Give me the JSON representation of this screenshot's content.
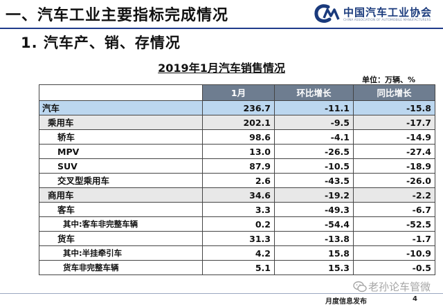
{
  "header": {
    "title": "一、汽车工业主要指标完成情况",
    "logo_cn": "中国汽车工业协会",
    "logo_en": "CHINA ASSOCIATION OF AUTOMOBILE MANUFACTURERS"
  },
  "section_title": "1. 汽车产、销、存情况",
  "table": {
    "title": "2019年1月汽车销售情况",
    "unit": "单位：万辆、%",
    "columns": [
      "",
      "1月",
      "环比增长",
      "同比增长"
    ],
    "rows": [
      {
        "name": "汽车",
        "level": 0,
        "jan": "236.7",
        "mom": "-11.1",
        "yoy": "-15.8"
      },
      {
        "name": "乘用车",
        "level": 1,
        "jan": "202.1",
        "mom": "-9.5",
        "yoy": "-17.7"
      },
      {
        "name": "轿车",
        "level": 2,
        "jan": "98.6",
        "mom": "-4.1",
        "yoy": "-14.9"
      },
      {
        "name": "MPV",
        "level": 2,
        "jan": "13.0",
        "mom": "-26.5",
        "yoy": "-27.4"
      },
      {
        "name": "SUV",
        "level": 2,
        "jan": "87.9",
        "mom": "-10.5",
        "yoy": "-18.9"
      },
      {
        "name": "交叉型乘用车",
        "level": 2,
        "jan": "2.6",
        "mom": "-43.5",
        "yoy": "-26.0"
      },
      {
        "name": "商用车",
        "level": 1,
        "jan": "34.6",
        "mom": "-19.2",
        "yoy": "-2.2"
      },
      {
        "name": "客车",
        "level": 2,
        "jan": "3.3",
        "mom": "-49.3",
        "yoy": "-6.7"
      },
      {
        "name": "其中:客车非完整车辆",
        "level": 3,
        "jan": "0.2",
        "mom": "-54.4",
        "yoy": "-52.5"
      },
      {
        "name": "货车",
        "level": 2,
        "jan": "31.3",
        "mom": "-13.8",
        "yoy": "-1.7"
      },
      {
        "name": "其中:半挂牵引车",
        "level": 3,
        "jan": "4.2",
        "mom": "15.8",
        "yoy": "-10.9"
      },
      {
        "name": "货车非完整车辆",
        "level": 3,
        "jan": "5.1",
        "mom": "15.3",
        "yoy": "-0.5"
      }
    ]
  },
  "footer": {
    "label": "月度信息发布",
    "page_number": "4"
  },
  "watermark": {
    "text": "老孙论车管微",
    "icon": "wechat-icon"
  },
  "colors": {
    "accent": "#1f3a8a",
    "header_fill": "#6e7d90",
    "total_row": "#bcd7ef",
    "category_row": "#e8e8e8"
  }
}
